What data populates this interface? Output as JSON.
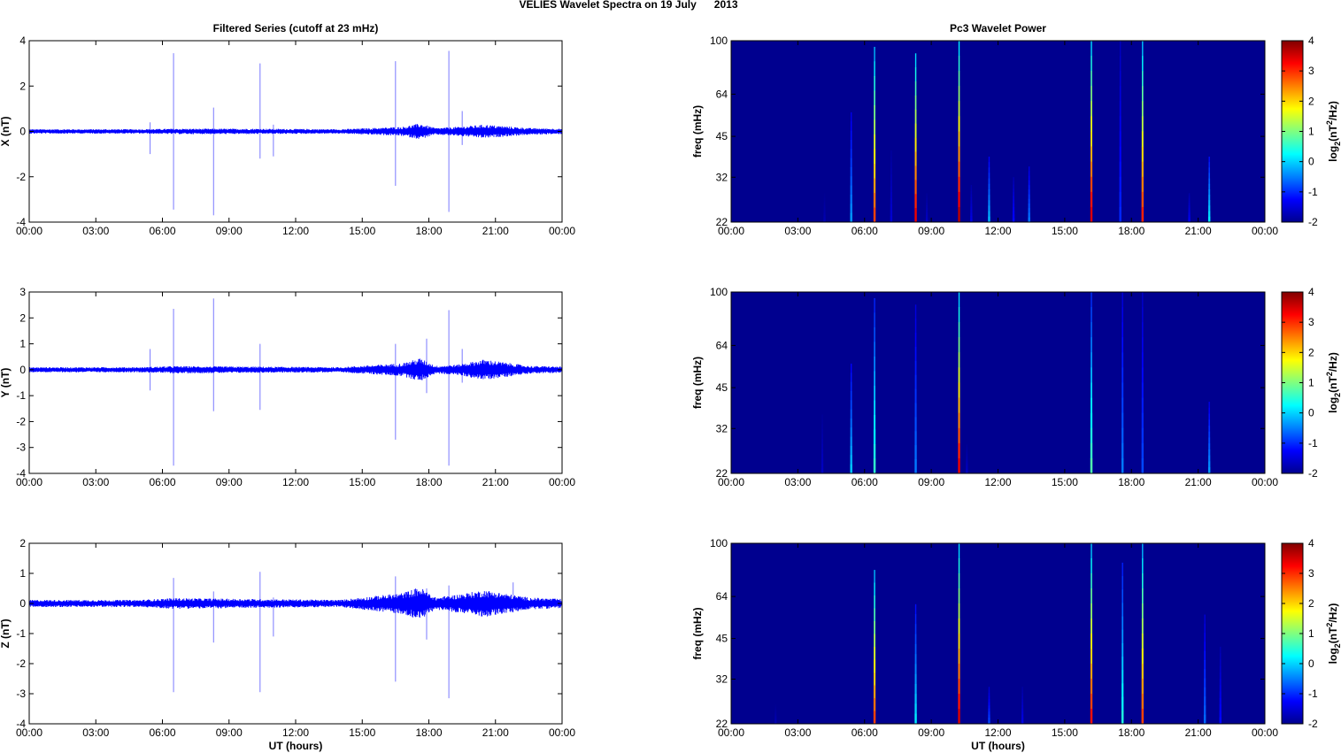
{
  "suptitle": "VELIES Wavelet Spectra on 19 July      2013",
  "colors": {
    "trace": "#0000ff",
    "spectrum_background": "#00008f",
    "axis": "#000000"
  },
  "time_ticks": [
    "00:00",
    "03:00",
    "06:00",
    "09:00",
    "12:00",
    "15:00",
    "18:00",
    "21:00",
    "00:00"
  ],
  "xlabel": "UT (hours)",
  "chart_data": [
    {
      "type": "line",
      "panel": "filtered-x",
      "title": "Filtered Series (cutoff at 23 mHz)",
      "ylabel": "X (nT)",
      "xlabel": "",
      "x_range_hours": [
        0,
        24
      ],
      "ylim": [
        -4,
        4
      ],
      "yticks": [
        -4,
        -2,
        0,
        2,
        4
      ],
      "noise_envelope": [
        [
          0,
          0.1
        ],
        [
          5,
          0.1
        ],
        [
          6.5,
          0.12
        ],
        [
          10,
          0.12
        ],
        [
          14,
          0.1
        ],
        [
          16.8,
          0.2
        ],
        [
          17.6,
          0.35
        ],
        [
          18.3,
          0.15
        ],
        [
          19.3,
          0.2
        ],
        [
          20.5,
          0.3
        ],
        [
          22.5,
          0.15
        ],
        [
          24,
          0.12
        ]
      ],
      "spikes": [
        {
          "t": 5.45,
          "min": -1.0,
          "max": 0.4
        },
        {
          "t": 6.5,
          "min": -3.45,
          "max": 3.45
        },
        {
          "t": 8.3,
          "min": -3.7,
          "max": 1.05
        },
        {
          "t": 10.4,
          "min": -1.2,
          "max": 3.0
        },
        {
          "t": 11.0,
          "min": -1.1,
          "max": 0.3
        },
        {
          "t": 16.5,
          "min": -2.4,
          "max": 3.1
        },
        {
          "t": 18.9,
          "min": -3.55,
          "max": 3.55
        },
        {
          "t": 19.5,
          "min": -0.6,
          "max": 0.9
        }
      ]
    },
    {
      "type": "line",
      "panel": "filtered-y",
      "title": "",
      "ylabel": "Y (nT)",
      "xlabel": "",
      "x_range_hours": [
        0,
        24
      ],
      "ylim": [
        -4,
        3
      ],
      "yticks": [
        -4,
        -3,
        -2,
        -1,
        0,
        1,
        2,
        3
      ],
      "noise_envelope": [
        [
          0,
          0.1
        ],
        [
          5,
          0.1
        ],
        [
          6.5,
          0.14
        ],
        [
          10,
          0.12
        ],
        [
          14,
          0.1
        ],
        [
          16.8,
          0.25
        ],
        [
          17.6,
          0.45
        ],
        [
          18.3,
          0.15
        ],
        [
          19.3,
          0.2
        ],
        [
          20.5,
          0.4
        ],
        [
          22.5,
          0.15
        ],
        [
          24,
          0.12
        ]
      ],
      "spikes": [
        {
          "t": 5.45,
          "min": -0.8,
          "max": 0.8
        },
        {
          "t": 6.5,
          "min": -3.7,
          "max": 2.35
        },
        {
          "t": 8.3,
          "min": -1.6,
          "max": 2.75
        },
        {
          "t": 10.4,
          "min": -1.55,
          "max": 1.0
        },
        {
          "t": 16.5,
          "min": -2.7,
          "max": 1.0
        },
        {
          "t": 17.9,
          "min": -0.9,
          "max": 1.2
        },
        {
          "t": 18.9,
          "min": -3.7,
          "max": 2.3
        },
        {
          "t": 19.5,
          "min": -0.5,
          "max": 0.8
        }
      ]
    },
    {
      "type": "line",
      "panel": "filtered-z",
      "title": "",
      "ylabel": "Z (nT)",
      "xlabel": "UT (hours)",
      "x_range_hours": [
        0,
        24
      ],
      "ylim": [
        -4,
        2
      ],
      "yticks": [
        -4,
        -3,
        -2,
        -1,
        0,
        1,
        2
      ],
      "noise_envelope": [
        [
          0,
          0.12
        ],
        [
          5,
          0.12
        ],
        [
          6.5,
          0.18
        ],
        [
          10,
          0.15
        ],
        [
          14,
          0.12
        ],
        [
          16.8,
          0.35
        ],
        [
          17.6,
          0.55
        ],
        [
          18.3,
          0.2
        ],
        [
          19.3,
          0.3
        ],
        [
          20.5,
          0.45
        ],
        [
          22.5,
          0.2
        ],
        [
          24,
          0.15
        ]
      ],
      "spikes": [
        {
          "t": 6.5,
          "min": -2.95,
          "max": 0.85
        },
        {
          "t": 8.3,
          "min": -1.3,
          "max": 0.4
        },
        {
          "t": 10.4,
          "min": -2.95,
          "max": 1.05
        },
        {
          "t": 11.0,
          "min": -1.1,
          "max": 0.2
        },
        {
          "t": 16.5,
          "min": -2.6,
          "max": 0.9
        },
        {
          "t": 17.9,
          "min": -1.2,
          "max": 0.5
        },
        {
          "t": 18.9,
          "min": -3.15,
          "max": 0.6
        },
        {
          "t": 21.8,
          "min": -0.3,
          "max": 0.7
        }
      ]
    },
    {
      "type": "heatmap",
      "panel": "wavelet-x",
      "title": "Pc3 Wavelet Power",
      "ylabel": "freq (mHz)",
      "xlabel": "",
      "x_range_hours": [
        0,
        24
      ],
      "yticks": [
        "22",
        "32",
        "45",
        "64",
        "100"
      ],
      "y_log_range_mhz": [
        22,
        100
      ],
      "colorbar": {
        "label": "log2(nT2/Hz)",
        "ticks": [
          "-2",
          "-1",
          "0",
          "1",
          "2",
          "3",
          "4"
        ],
        "range": [
          -2,
          4
        ]
      },
      "streaks": [
        {
          "t": 4.2,
          "f_top": 28,
          "level": -1.7
        },
        {
          "t": 5.4,
          "f_top": 55,
          "level": -0.3
        },
        {
          "t": 6.45,
          "f_top": 95,
          "level": 3.0
        },
        {
          "t": 7.2,
          "f_top": 40,
          "level": -1.5
        },
        {
          "t": 8.3,
          "f_top": 90,
          "level": 3.5
        },
        {
          "t": 8.8,
          "f_top": 28,
          "level": -1.6
        },
        {
          "t": 10.25,
          "f_top": 100,
          "level": 3.8
        },
        {
          "t": 10.8,
          "f_top": 30,
          "level": -1.4
        },
        {
          "t": 11.6,
          "f_top": 38,
          "level": -0.1
        },
        {
          "t": 12.7,
          "f_top": 32,
          "level": -1.2
        },
        {
          "t": 13.4,
          "f_top": 35,
          "level": -0.5
        },
        {
          "t": 16.2,
          "f_top": 100,
          "level": 3.6
        },
        {
          "t": 17.5,
          "f_top": 100,
          "level": -1.0
        },
        {
          "t": 18.5,
          "f_top": 100,
          "level": 3.2
        },
        {
          "t": 20.6,
          "f_top": 28,
          "level": -1.3
        },
        {
          "t": 21.5,
          "f_top": 38,
          "level": 0.2
        }
      ]
    },
    {
      "type": "heatmap",
      "panel": "wavelet-y",
      "title": "",
      "ylabel": "freq (mHz)",
      "xlabel": "",
      "x_range_hours": [
        0,
        24
      ],
      "yticks": [
        "22",
        "32",
        "45",
        "64",
        "100"
      ],
      "y_log_range_mhz": [
        22,
        100
      ],
      "colorbar": {
        "label": "log2(nT2/Hz)",
        "ticks": [
          "-2",
          "-1",
          "0",
          "1",
          "2",
          "3",
          "4"
        ],
        "range": [
          -2,
          4
        ]
      },
      "streaks": [
        {
          "t": 4.1,
          "f_top": 36,
          "level": -1.6
        },
        {
          "t": 5.4,
          "f_top": 55,
          "level": 0.0
        },
        {
          "t": 6.45,
          "f_top": 95,
          "level": 0.6
        },
        {
          "t": 8.3,
          "f_top": 90,
          "level": -0.5
        },
        {
          "t": 10.25,
          "f_top": 100,
          "level": 3.5
        },
        {
          "t": 10.6,
          "f_top": 28,
          "level": -1.6
        },
        {
          "t": 16.2,
          "f_top": 100,
          "level": 0.8
        },
        {
          "t": 17.6,
          "f_top": 100,
          "level": -0.5
        },
        {
          "t": 18.5,
          "f_top": 100,
          "level": -0.8
        },
        {
          "t": 21.5,
          "f_top": 40,
          "level": -0.3
        }
      ]
    },
    {
      "type": "heatmap",
      "panel": "wavelet-z",
      "title": "",
      "ylabel": "freq (mHz)",
      "xlabel": "UT (hours)",
      "x_range_hours": [
        0,
        24
      ],
      "yticks": [
        "22",
        "32",
        "45",
        "64",
        "100"
      ],
      "y_log_range_mhz": [
        22,
        100
      ],
      "colorbar": {
        "label": "log2(nT2/Hz)",
        "ticks": [
          "-2",
          "-1",
          "0",
          "1",
          "2",
          "3",
          "4"
        ],
        "range": [
          -2,
          4
        ]
      },
      "streaks": [
        {
          "t": 2.0,
          "f_top": 26,
          "level": -1.7
        },
        {
          "t": 6.45,
          "f_top": 80,
          "level": 3.0
        },
        {
          "t": 8.3,
          "f_top": 60,
          "level": 0.2
        },
        {
          "t": 10.25,
          "f_top": 100,
          "level": 3.6
        },
        {
          "t": 11.6,
          "f_top": 30,
          "level": -0.8
        },
        {
          "t": 13.1,
          "f_top": 30,
          "level": -1.4
        },
        {
          "t": 16.2,
          "f_top": 100,
          "level": 3.3
        },
        {
          "t": 17.6,
          "f_top": 85,
          "level": 0.5
        },
        {
          "t": 18.5,
          "f_top": 100,
          "level": 3.0
        },
        {
          "t": 21.3,
          "f_top": 55,
          "level": -0.6
        },
        {
          "t": 22.0,
          "f_top": 42,
          "level": -1.2
        }
      ]
    }
  ]
}
